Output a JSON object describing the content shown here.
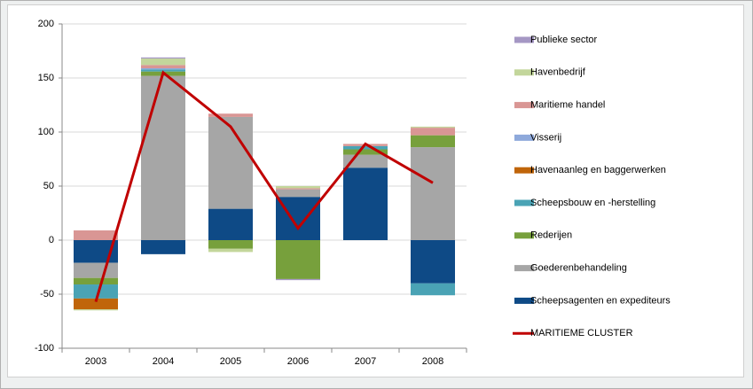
{
  "chart_data": {
    "type": "bar",
    "stacked": true,
    "categories": [
      "2003",
      "2004",
      "2005",
      "2006",
      "2007",
      "2008"
    ],
    "ylim": [
      -100,
      200
    ],
    "yticks": [
      -100,
      -50,
      0,
      50,
      100,
      150,
      200
    ],
    "grid": true,
    "legend": "right",
    "series": [
      {
        "name": "Scheepsagenten en expediteurs",
        "color": "#0e4a86",
        "values": [
          -21,
          -13,
          29,
          40,
          67,
          -40
        ]
      },
      {
        "name": "Goederenbehandeling",
        "color": "#a6a6a6",
        "values": [
          -14,
          152,
          85,
          7,
          12,
          86
        ]
      },
      {
        "name": "Rederijen",
        "color": "#77a03c",
        "values": [
          -6,
          4,
          -8,
          -36,
          5,
          11
        ]
      },
      {
        "name": "Scheepsbouw en -herstelling",
        "color": "#4aa3b5",
        "values": [
          -13,
          2,
          0,
          0,
          3,
          -11
        ]
      },
      {
        "name": "Havenaanleg en baggerwerken",
        "color": "#c0650a",
        "values": [
          -10,
          0,
          0,
          0,
          0,
          0
        ]
      },
      {
        "name": "Visserij",
        "color": "#8ea9db",
        "values": [
          0,
          1,
          0,
          0,
          0,
          0
        ]
      },
      {
        "name": "Maritieme handel",
        "color": "#d99694",
        "values": [
          9,
          3,
          3,
          1,
          2,
          7
        ]
      },
      {
        "name": "Havenbedrijf",
        "color": "#c3d69b",
        "values": [
          -1,
          6,
          -3,
          2,
          0,
          1
        ]
      },
      {
        "name": "Publieke sector",
        "color": "#a597c4",
        "values": [
          0,
          1,
          0,
          -1,
          0,
          0
        ]
      },
      {
        "name": "MARITIEME  CLUSTER",
        "color": "#c00000",
        "type": "line",
        "values": [
          -57,
          155,
          105,
          11,
          89,
          53
        ]
      }
    ]
  }
}
